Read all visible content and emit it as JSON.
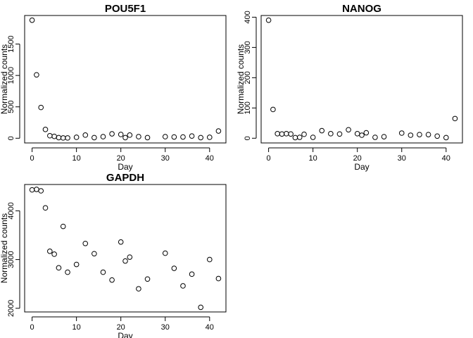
{
  "chart_data": [
    {
      "type": "scatter",
      "title": "POU5F1",
      "xlabel": "Day",
      "ylabel": "Normalized counts",
      "xlim": [
        -1.68,
        43.68
      ],
      "ylim": [
        -75,
        1955
      ],
      "xticks": [
        0,
        10,
        20,
        30,
        40
      ],
      "yticks": [
        0,
        500,
        1000,
        1500
      ],
      "grid": false,
      "series": [
        {
          "x": [
            0,
            1,
            2,
            3,
            4,
            5,
            6,
            7,
            8,
            10,
            12,
            14,
            16,
            18,
            20,
            21,
            22,
            24,
            26,
            30,
            32,
            34,
            36,
            38,
            40,
            42
          ],
          "y": [
            1880,
            1010,
            490,
            140,
            40,
            30,
            10,
            5,
            5,
            15,
            50,
            10,
            25,
            70,
            60,
            10,
            50,
            25,
            10,
            25,
            20,
            20,
            35,
            10,
            15,
            115
          ]
        }
      ]
    },
    {
      "type": "scatter",
      "title": "NANOG",
      "xlabel": "Day",
      "ylabel": "Normalized counts",
      "xlim": [
        -1.68,
        43.68
      ],
      "ylim": [
        -15.6,
        405.6
      ],
      "xticks": [
        0,
        10,
        20,
        30,
        40
      ],
      "yticks": [
        0,
        100,
        200,
        300,
        400
      ],
      "grid": false,
      "series": [
        {
          "x": [
            0,
            1,
            2,
            3,
            4,
            5,
            6,
            7,
            8,
            10,
            12,
            14,
            16,
            18,
            20,
            21,
            22,
            24,
            26,
            30,
            32,
            34,
            36,
            38,
            40,
            42
          ],
          "y": [
            390,
            95,
            15,
            14,
            15,
            14,
            2,
            3,
            13,
            3,
            25,
            15,
            14,
            28,
            15,
            10,
            18,
            3,
            5,
            17,
            10,
            12,
            12,
            7,
            2,
            65
          ]
        }
      ]
    },
    {
      "type": "scatter",
      "title": "GAPDH",
      "xlabel": "Day",
      "ylabel": "Normalized counts",
      "xlim": [
        -1.68,
        43.68
      ],
      "ylim": [
        1925,
        4540
      ],
      "xticks": [
        0,
        10,
        20,
        30,
        40
      ],
      "yticks": [
        2000,
        3000,
        4000
      ],
      "grid": false,
      "series": [
        {
          "x": [
            0,
            1,
            2,
            3,
            4,
            5,
            6,
            7,
            8,
            10,
            12,
            14,
            16,
            18,
            20,
            21,
            22,
            24,
            26,
            30,
            32,
            34,
            36,
            38,
            40,
            42
          ],
          "y": [
            4430,
            4440,
            4410,
            4060,
            3170,
            3110,
            2830,
            3680,
            2740,
            2900,
            3330,
            3120,
            2740,
            2580,
            3360,
            2970,
            3050,
            2400,
            2600,
            3130,
            2820,
            2460,
            2700,
            2020,
            3000,
            2610
          ]
        }
      ]
    }
  ]
}
